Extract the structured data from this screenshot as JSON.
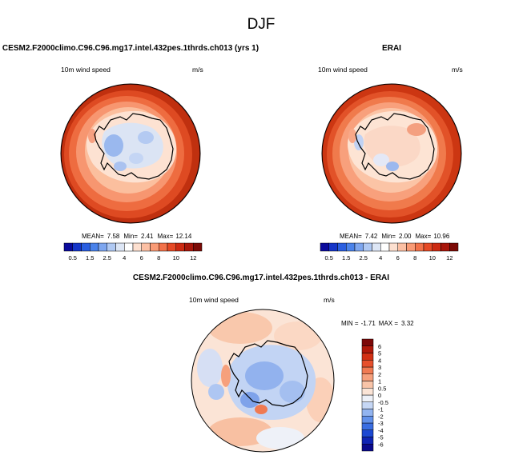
{
  "page": {
    "title": "DJF"
  },
  "chart_data": [
    {
      "type": "heatmap",
      "panel_title": "CESM2.F2000climo.C96.C96.mg17.intel.432pes.1thrds.ch013 (yrs 1)",
      "variable_label": "10m wind speed",
      "units_label": "m/s",
      "stats": {
        "mean_label": "MEAN=",
        "mean": "7.58",
        "min_label": "Min=",
        "min": "2.41",
        "max_label": "Max=",
        "max": "12.14"
      },
      "colorbar": {
        "orientation": "horizontal",
        "levels": [
          0.5,
          1,
          1.5,
          2,
          2.5,
          3,
          4,
          5,
          6,
          7,
          8,
          9,
          10,
          11,
          12
        ],
        "tick_labels": [
          "0.5",
          "1.5",
          "2.5",
          "4",
          "6",
          "8",
          "10",
          "12"
        ],
        "colors": [
          "#0b0b9c",
          "#1535c8",
          "#2a5ee0",
          "#4a82ea",
          "#7ea6ef",
          "#b0c9f3",
          "#dde6f5",
          "#ffffff",
          "#fde0d0",
          "#fcc0a4",
          "#f99b76",
          "#f2724a",
          "#e64a26",
          "#cc2a12",
          "#a8160a",
          "#7c0a06"
        ]
      }
    },
    {
      "type": "heatmap",
      "panel_title": "ERAI",
      "variable_label": "10m wind speed",
      "units_label": "m/s",
      "stats": {
        "mean_label": "MEAN=",
        "mean": "7.42",
        "min_label": "Min=",
        "min": "2.00",
        "max_label": "Max=",
        "max": "10.96"
      },
      "colorbar": {
        "orientation": "horizontal",
        "levels": [
          0.5,
          1,
          1.5,
          2,
          2.5,
          3,
          4,
          5,
          6,
          7,
          8,
          9,
          10,
          11,
          12
        ],
        "tick_labels": [
          "0.5",
          "1.5",
          "2.5",
          "4",
          "6",
          "8",
          "10",
          "12"
        ],
        "colors": [
          "#0b0b9c",
          "#1535c8",
          "#2a5ee0",
          "#4a82ea",
          "#7ea6ef",
          "#b0c9f3",
          "#dde6f5",
          "#ffffff",
          "#fde0d0",
          "#fcc0a4",
          "#f99b76",
          "#f2724a",
          "#e64a26",
          "#cc2a12",
          "#a8160a",
          "#7c0a06"
        ]
      }
    },
    {
      "type": "heatmap",
      "panel_title": "CESM2.F2000climo.C96.C96.mg17.intel.432pes.1thrds.ch013 - ERAI",
      "variable_label": "10m wind speed",
      "units_label": "m/s",
      "stats": {
        "min_label": "MIN =",
        "min": "-1.71",
        "max_label": "MAX =",
        "max": "3.32"
      },
      "colorbar": {
        "orientation": "vertical",
        "levels": [
          -6,
          -5,
          -4,
          -3,
          -2,
          -1,
          -0.5,
          0,
          0.5,
          1,
          2,
          3,
          4,
          5,
          6
        ],
        "tick_labels": [
          "-6",
          "-5",
          "-4",
          "-3",
          "-2",
          "-1",
          "-0.5",
          "0",
          "0.5",
          "1",
          "2",
          "3",
          "4",
          "5",
          "6"
        ],
        "colors": [
          "#0a0a8c",
          "#0f24b4",
          "#1c48d2",
          "#3a6ee2",
          "#6291ea",
          "#92b4f0",
          "#c6d7f5",
          "#eef1f8",
          "#fbe4d6",
          "#f9c4a8",
          "#f6a07c",
          "#f07a52",
          "#e6502c",
          "#d23014",
          "#b0180a",
          "#7c0808"
        ]
      }
    }
  ]
}
